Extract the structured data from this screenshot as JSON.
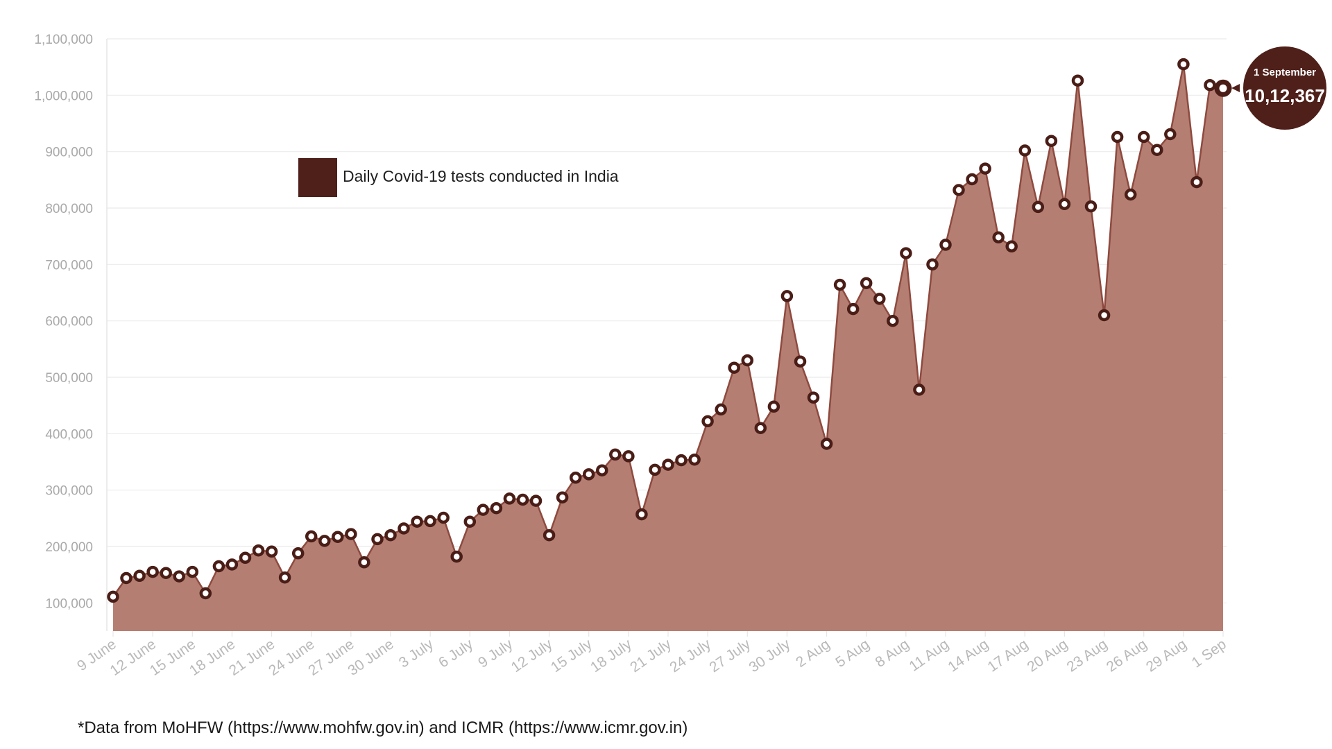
{
  "chart_data": {
    "type": "area",
    "legend": {
      "label": "Daily Covid-19 tests conducted in India",
      "placement": "top-left"
    },
    "colors": {
      "area": "#b57e72",
      "line": "#8e4a3f",
      "marker": "#4a1d17",
      "legend_swatch": "#4f1f1a",
      "annotation": "#4f1f1a",
      "grid": "#ebebeb",
      "tick": "#a9a9a9"
    },
    "ylim": [
      50000,
      1100000
    ],
    "yticks": [
      100000,
      200000,
      300000,
      400000,
      500000,
      600000,
      700000,
      800000,
      900000,
      1000000,
      1100000
    ],
    "ytick_labels": [
      "100,000",
      "200,000",
      "300,000",
      "400,000",
      "500,000",
      "600,000",
      "700,000",
      "800,000",
      "900,000",
      "1,000,000",
      "1,100,000"
    ],
    "grid": true,
    "xticks": [
      {
        "index": 0,
        "label": "9 June"
      },
      {
        "index": 3,
        "label": "12 June"
      },
      {
        "index": 6,
        "label": "15 June"
      },
      {
        "index": 9,
        "label": "18 June"
      },
      {
        "index": 12,
        "label": "21 June"
      },
      {
        "index": 15,
        "label": "24 June"
      },
      {
        "index": 18,
        "label": "27 June"
      },
      {
        "index": 21,
        "label": "30 June"
      },
      {
        "index": 24,
        "label": "3 July"
      },
      {
        "index": 27,
        "label": "6 July"
      },
      {
        "index": 30,
        "label": "9 July"
      },
      {
        "index": 33,
        "label": "12 July"
      },
      {
        "index": 36,
        "label": "15 July"
      },
      {
        "index": 39,
        "label": "18 July"
      },
      {
        "index": 42,
        "label": "21 July"
      },
      {
        "index": 45,
        "label": "24 July"
      },
      {
        "index": 48,
        "label": "27 July"
      },
      {
        "index": 51,
        "label": "30 July"
      },
      {
        "index": 54,
        "label": "2 Aug"
      },
      {
        "index": 57,
        "label": "5 Aug"
      },
      {
        "index": 60,
        "label": "8 Aug"
      },
      {
        "index": 63,
        "label": "11 Aug"
      },
      {
        "index": 66,
        "label": "14 Aug"
      },
      {
        "index": 69,
        "label": "17 Aug"
      },
      {
        "index": 72,
        "label": "20 Aug"
      },
      {
        "index": 75,
        "label": "23 Aug"
      },
      {
        "index": 78,
        "label": "26 Aug"
      },
      {
        "index": 81,
        "label": "29 Aug"
      },
      {
        "index": 84,
        "label": "1 Sep"
      }
    ],
    "series": [
      {
        "name": "Daily Covid-19 tests conducted in India",
        "values": [
          111000,
          144000,
          148000,
          155000,
          153000,
          147000,
          155000,
          117000,
          165000,
          168000,
          180000,
          193000,
          191000,
          145000,
          188000,
          218000,
          210000,
          217000,
          222000,
          172000,
          213000,
          220000,
          232000,
          244000,
          245000,
          251000,
          182000,
          244000,
          265000,
          268000,
          285000,
          283000,
          281000,
          220000,
          287000,
          322000,
          328000,
          335000,
          363000,
          360000,
          257000,
          336000,
          345000,
          353000,
          354000,
          422000,
          443000,
          517000,
          530000,
          410000,
          448000,
          644000,
          528000,
          464000,
          382000,
          664000,
          621000,
          667000,
          639000,
          600000,
          720000,
          478000,
          700000,
          735000,
          832000,
          851000,
          870000,
          748000,
          732000,
          902000,
          802000,
          919000,
          807000,
          1026000,
          803000,
          610000,
          926000,
          824000,
          926000,
          903000,
          931000,
          1055000,
          846000,
          1018000,
          1012367
        ]
      }
    ],
    "annotation": {
      "date": "1 September",
      "value_text": "10,12,367"
    }
  },
  "footnote": "*Data from MoHFW (https://www.mohfw.gov.in) and ICMR (https://www.icmr.gov.in)"
}
